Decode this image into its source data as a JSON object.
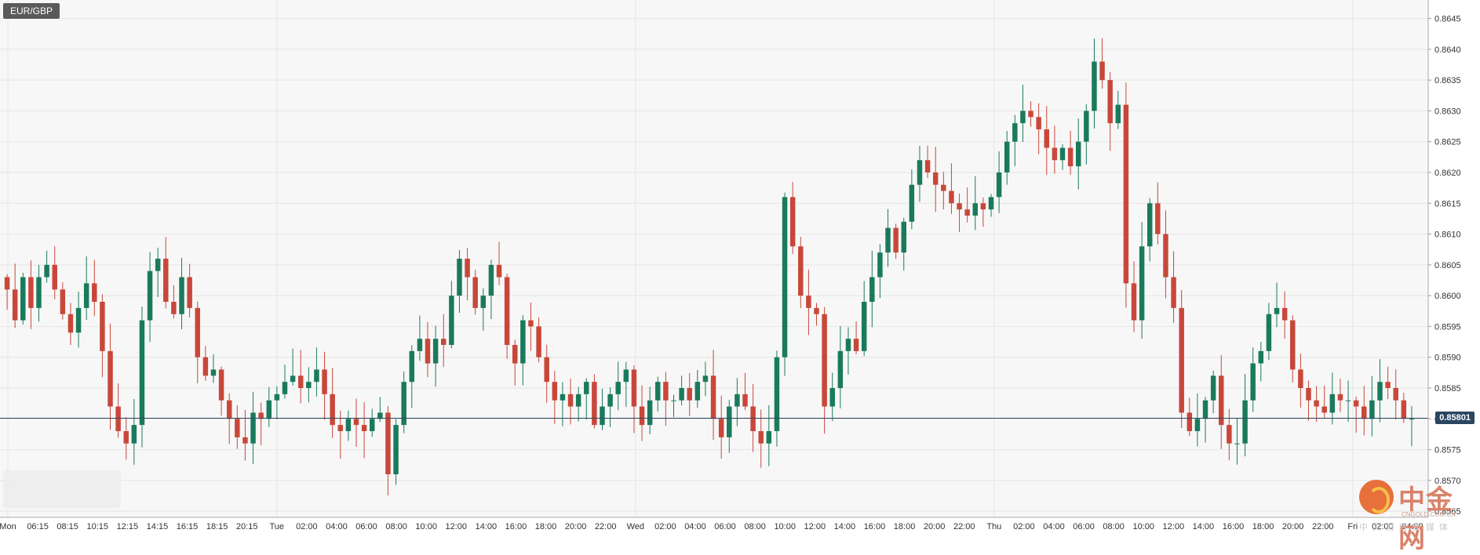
{
  "symbol": "EUR/GBP",
  "current_price_label": "0.85801",
  "colors": {
    "up": "#1a7a5c",
    "down": "#c8473a",
    "grid": "#e6e6e6",
    "price_line": "#2b4660",
    "background": "#f7f7f7"
  },
  "watermark": {
    "logo_text": "中金网",
    "url": "CNGOLD.COM.CN",
    "sub": "中文财经新媒体",
    "icon": "cngold-logo-icon"
  },
  "chart_data": {
    "type": "candlestick",
    "title": "",
    "ylim": [
      0.8564,
      0.8648
    ],
    "y_ticks": [
      "0.8645",
      "0.8640",
      "0.8635",
      "0.8630",
      "0.8625",
      "0.8620",
      "0.8615",
      "0.8610",
      "0.8605",
      "0.8600",
      "0.8595",
      "0.8590",
      "0.8585",
      "0.8580",
      "0.8575",
      "0.8570",
      "0.8565"
    ],
    "current_price": 0.85801,
    "x_ticks": [
      "Mon",
      "06:15",
      "08:15",
      "10:15",
      "12:15",
      "14:15",
      "16:15",
      "18:15",
      "20:15",
      "Tue",
      "02:00",
      "04:00",
      "06:00",
      "08:00",
      "10:00",
      "12:00",
      "14:00",
      "16:00",
      "18:00",
      "20:00",
      "22:00",
      "Wed",
      "02:00",
      "04:00",
      "06:00",
      "08:00",
      "10:00",
      "12:00",
      "14:00",
      "16:00",
      "18:00",
      "20:00",
      "22:00",
      "Thu",
      "02:00",
      "04:00",
      "06:00",
      "08:00",
      "10:00",
      "12:00",
      "14:00",
      "16:00",
      "18:00",
      "20:00",
      "22:00",
      "Fri",
      "02:00",
      "04:00"
    ],
    "closes": [
      0.8601,
      0.8596,
      0.8603,
      0.8598,
      0.8603,
      0.8605,
      0.8601,
      0.8597,
      0.8594,
      0.8598,
      0.8602,
      0.8599,
      0.8591,
      0.8582,
      0.8578,
      0.8576,
      0.8579,
      0.8596,
      0.8604,
      0.8606,
      0.8599,
      0.8597,
      0.8603,
      0.8598,
      0.859,
      0.8587,
      0.8588,
      0.8583,
      0.858,
      0.8577,
      0.8576,
      0.8581,
      0.858,
      0.8583,
      0.8584,
      0.8586,
      0.8587,
      0.8585,
      0.8586,
      0.8588,
      0.8584,
      0.8579,
      0.8578,
      0.858,
      0.8579,
      0.8578,
      0.858,
      0.8581,
      0.8571,
      0.8579,
      0.8586,
      0.8591,
      0.8593,
      0.8589,
      0.8593,
      0.8592,
      0.86,
      0.8606,
      0.8603,
      0.8598,
      0.86,
      0.8605,
      0.8603,
      0.8592,
      0.8589,
      0.8596,
      0.8595,
      0.859,
      0.8586,
      0.8583,
      0.8584,
      0.8582,
      0.8584,
      0.8586,
      0.8579,
      0.8582,
      0.8584,
      0.8586,
      0.8588,
      0.8582,
      0.8579,
      0.8583,
      0.8586,
      0.8583,
      0.8583,
      0.8585,
      0.8583,
      0.8586,
      0.8587,
      0.858,
      0.8577,
      0.8582,
      0.8584,
      0.8582,
      0.8578,
      0.8576,
      0.8578,
      0.859,
      0.8616,
      0.8608,
      0.86,
      0.8598,
      0.8597,
      0.8582,
      0.8585,
      0.8591,
      0.8593,
      0.8591,
      0.8599,
      0.8603,
      0.8607,
      0.8611,
      0.8607,
      0.8612,
      0.8618,
      0.8622,
      0.862,
      0.8618,
      0.8617,
      0.8615,
      0.8614,
      0.8613,
      0.8615,
      0.8614,
      0.8616,
      0.862,
      0.8625,
      0.8628,
      0.863,
      0.8629,
      0.8627,
      0.8624,
      0.8622,
      0.8624,
      0.8621,
      0.8625,
      0.863,
      0.8638,
      0.8635,
      0.8628,
      0.8631,
      0.8602,
      0.8596,
      0.8608,
      0.8615,
      0.861,
      0.8603,
      0.8598,
      0.8581,
      0.8578,
      0.858,
      0.8583,
      0.8587,
      0.8579,
      0.8576,
      0.8576,
      0.8583,
      0.8589,
      0.8591,
      0.8597,
      0.8598,
      0.8596,
      0.8588,
      0.8585,
      0.8583,
      0.8582,
      0.8581,
      0.8584,
      0.8583,
      0.8583,
      0.8582,
      0.858,
      0.8583,
      0.8586,
      0.8585,
      0.8583,
      0.858,
      0.858
    ]
  }
}
